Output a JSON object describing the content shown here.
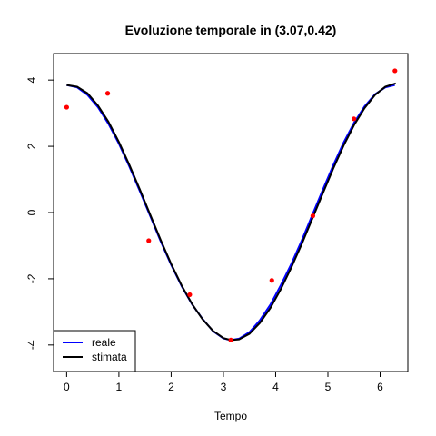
{
  "chart_data": {
    "type": "line",
    "title": "Evoluzione temporale in (3.07,0.42)",
    "xlabel": "Tempo",
    "ylabel": "",
    "xlim": [
      -0.25,
      6.53
    ],
    "ylim": [
      -4.8,
      4.8
    ],
    "x_ticks": [
      0,
      1,
      2,
      3,
      4,
      5,
      6
    ],
    "y_ticks": [
      -4,
      -2,
      0,
      2,
      4
    ],
    "grid": false,
    "legend_position": "bottom-left",
    "series": [
      {
        "name": "reale",
        "color": "#0000ff",
        "x": [
          0,
          0.2,
          0.4,
          0.6,
          0.8,
          1.0,
          1.2,
          1.4,
          1.6,
          1.8,
          2.0,
          2.2,
          2.4,
          2.6,
          2.8,
          3.0,
          3.14,
          3.3,
          3.5,
          3.7,
          3.9,
          4.1,
          4.3,
          4.5,
          4.7,
          4.9,
          5.1,
          5.3,
          5.5,
          5.7,
          5.9,
          6.1,
          6.28
        ],
        "y": [
          3.85,
          3.78,
          3.55,
          3.18,
          2.68,
          2.08,
          1.39,
          0.65,
          -0.11,
          -0.87,
          -1.58,
          -2.22,
          -2.77,
          -3.21,
          -3.58,
          -3.8,
          -3.85,
          -3.81,
          -3.61,
          -3.25,
          -2.78,
          -2.19,
          -1.55,
          -0.84,
          -0.08,
          0.68,
          1.42,
          2.11,
          2.71,
          3.2,
          3.57,
          3.78,
          3.85
        ]
      },
      {
        "name": "stimata",
        "color": "#000000",
        "x": [
          0,
          0.2,
          0.4,
          0.6,
          0.8,
          1.0,
          1.2,
          1.4,
          1.6,
          1.8,
          2.0,
          2.2,
          2.4,
          2.6,
          2.8,
          3.0,
          3.14,
          3.3,
          3.5,
          3.7,
          3.9,
          4.1,
          4.3,
          4.5,
          4.7,
          4.9,
          5.1,
          5.3,
          5.5,
          5.7,
          5.9,
          6.1,
          6.3
        ],
        "y": [
          3.85,
          3.8,
          3.6,
          3.23,
          2.74,
          2.13,
          1.44,
          0.7,
          -0.07,
          -0.83,
          -1.55,
          -2.2,
          -2.76,
          -3.22,
          -3.57,
          -3.79,
          -3.85,
          -3.83,
          -3.66,
          -3.33,
          -2.88,
          -2.31,
          -1.66,
          -0.95,
          -0.19,
          0.57,
          1.32,
          2.02,
          2.64,
          3.15,
          3.55,
          3.8,
          3.9
        ]
      },
      {
        "name": "",
        "kind": "points",
        "color": "#ff0000",
        "x": [
          0,
          0.785,
          1.571,
          2.356,
          3.142,
          3.927,
          4.712,
          5.498,
          6.283
        ],
        "y": [
          3.18,
          3.6,
          -0.85,
          -2.48,
          -3.85,
          -2.05,
          -0.1,
          2.83,
          4.28
        ]
      }
    ]
  }
}
